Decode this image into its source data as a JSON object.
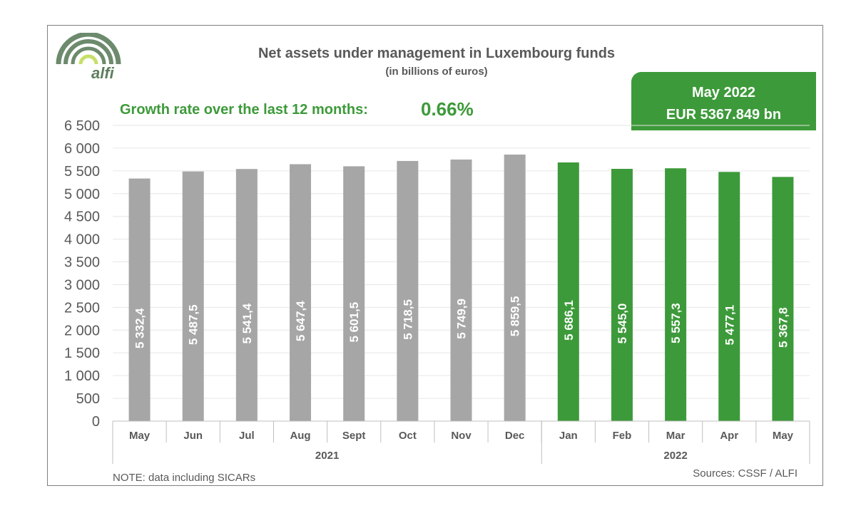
{
  "logo": {
    "text": "alfi"
  },
  "header": {
    "growth_label": "Growth rate over the last 12 months:",
    "growth_value": "0.66%"
  },
  "highlight": {
    "line1": "May 2022",
    "line2": "EUR 5367.849 bn"
  },
  "footer": {
    "note": "NOTE: data including SICARs",
    "sources": "Sources: CSSF / ALFI"
  },
  "colors": {
    "bar_2021": "#a6a6a6",
    "bar_2022": "#3d9a3a",
    "accent": "#3d9a3a",
    "text": "#595959"
  },
  "chart_data": {
    "type": "bar",
    "title": "Net assets under management in Luxembourg funds",
    "subtitle": "(in billions of euros)",
    "categories": [
      "May",
      "Jun",
      "Jul",
      "Aug",
      "Sept",
      "Oct",
      "Nov",
      "Dec",
      "Jan",
      "Feb",
      "Mar",
      "Apr",
      "May"
    ],
    "groups": [
      {
        "label": "2021",
        "count": 8
      },
      {
        "label": "2022",
        "count": 5
      }
    ],
    "values": [
      5332.4,
      5487.5,
      5541.4,
      5647.4,
      5601.5,
      5718.5,
      5749.9,
      5859.5,
      5686.1,
      5545.0,
      5557.3,
      5477.1,
      5367.8
    ],
    "value_labels": [
      "5 332,4",
      "5 487,5",
      "5 541,4",
      "5 647,4",
      "5 601,5",
      "5 718,5",
      "5 749,9",
      "5 859,5",
      "5 686,1",
      "5 545,0",
      "5 557,3",
      "5 477,1",
      "5 367,8"
    ],
    "yticks": [
      0,
      500,
      1000,
      1500,
      2000,
      2500,
      3000,
      3500,
      4000,
      4500,
      5000,
      5500,
      6000,
      6500
    ],
    "ytick_labels": [
      "0",
      "500",
      "1 000",
      "1 500",
      "2 000",
      "2 500",
      "3 000",
      "3 500",
      "4 000",
      "4 500",
      "5 000",
      "5 500",
      "6 000",
      "6 500"
    ],
    "ylim": [
      0,
      6500
    ],
    "grid": true,
    "legend": "none"
  }
}
